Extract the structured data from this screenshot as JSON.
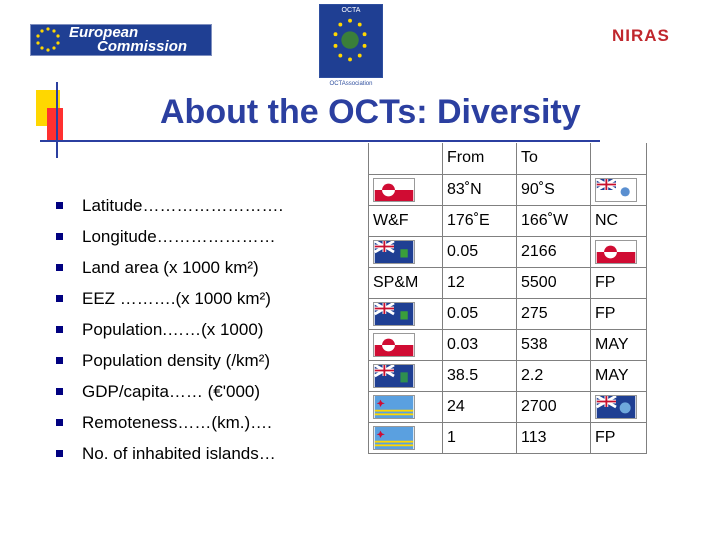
{
  "header": {
    "ec_logo_line1": "European",
    "ec_logo_line2": "Commission",
    "octa_logo_label": "OCTA",
    "octa_logo_caption": "OCTAssociation",
    "niras_logo": "NIRAS",
    "title": "About the OCTs: Diversity"
  },
  "bullets": [
    "Latitude…………………….",
    "Longitude…………………",
    "Land area (x 1000 km²)",
    "EEZ ……….(x 1000 km²)",
    "Population.……(x 1000)",
    "Population density (/km²)",
    "GDP/capita…… (€'000)",
    "Remoteness……(km.)….",
    "No. of inhabited islands…"
  ],
  "table": {
    "header": [
      "",
      "From",
      "To",
      ""
    ],
    "rows": [
      {
        "c0": {
          "flag": "greenland-flag"
        },
        "c1": "83˚N",
        "c2": "90˚S",
        "c3": {
          "flag": "bat-flag"
        }
      },
      {
        "c0": {
          "text": "W&F"
        },
        "c1": "176˚E",
        "c2": "166˚W",
        "c3": {
          "text": "NC"
        }
      },
      {
        "c0": {
          "flag": "pitcairn-flag"
        },
        "c1": "0.05",
        "c2": "2166",
        "c3": {
          "flag": "greenland-flag"
        }
      },
      {
        "c0": {
          "text": "SP&M"
        },
        "c1": "12",
        "c2": "5500",
        "c3": {
          "text": "FP"
        }
      },
      {
        "c0": {
          "flag": "pitcairn-flag"
        },
        "c1": "0.05",
        "c2": "275",
        "c3": {
          "text": "FP"
        }
      },
      {
        "c0": {
          "flag": "greenland-flag"
        },
        "c1": "0.03",
        "c2": "538",
        "c3": {
          "text": "MAY"
        }
      },
      {
        "c0": {
          "flag": "bvi-flag"
        },
        "c1": "38.5",
        "c2": "2.2",
        "c3": {
          "text": "MAY"
        }
      },
      {
        "c0": {
          "flag": "aruba-flag"
        },
        "c1": "24",
        "c2": "2700",
        "c3": {
          "flag": "falklands-flag"
        }
      },
      {
        "c0": {
          "flag": "aruba-flag"
        },
        "c1": "1",
        "c2": "113",
        "c3": {
          "text": "FP"
        }
      }
    ]
  },
  "colors": {
    "title": "#2b3fa0",
    "bullet": "#000080",
    "ec_blue": "#1f3f93",
    "niras_red": "#c0272d"
  }
}
